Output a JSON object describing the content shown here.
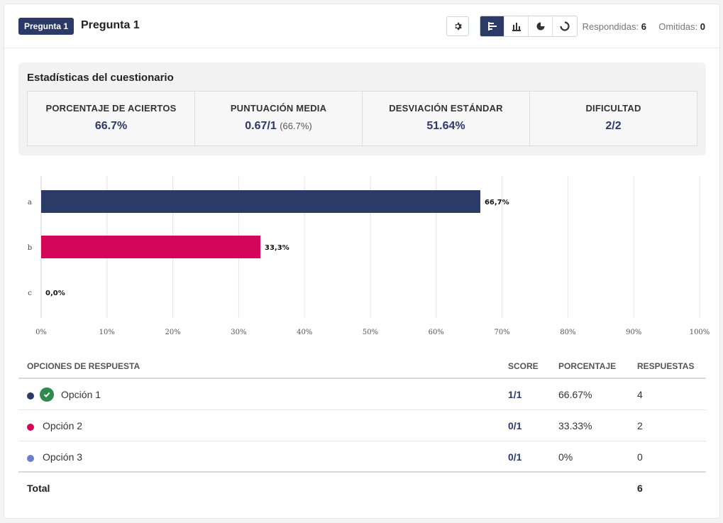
{
  "header": {
    "badge": "Pregunta 1",
    "title": "Pregunta 1",
    "answered_label": "Respondidas:",
    "answered_value": "6",
    "omitted_label": "Omitidas:",
    "omitted_value": "0",
    "active_view": "bar-horizontal"
  },
  "stats": {
    "title": "Estadísticas del cuestionario",
    "items": [
      {
        "label": "PORCENTAJE DE ACIERTOS",
        "value": "66.7%",
        "sub": ""
      },
      {
        "label": "PUNTUACIÓN MEDIA",
        "value": "0.67/1",
        "sub": "(66.7%)"
      },
      {
        "label": "DESVIACIÓN ESTÁNDAR",
        "value": "51.64%",
        "sub": ""
      },
      {
        "label": "DIFICULTAD",
        "value": "2/2",
        "sub": ""
      }
    ]
  },
  "chart_data": {
    "type": "bar",
    "orientation": "horizontal",
    "categories": [
      "a",
      "b",
      "c"
    ],
    "values": [
      66.7,
      33.3,
      0.0
    ],
    "value_labels": [
      "66,7%",
      "33,3%",
      "0,0%"
    ],
    "colors": [
      "#2b3a67",
      "#d4065a",
      "#6c7ec9"
    ],
    "xlim": [
      0,
      100
    ],
    "x_ticks": [
      "0%",
      "10%",
      "20%",
      "30%",
      "40%",
      "50%",
      "60%",
      "70%",
      "80%",
      "90%",
      "100%"
    ],
    "grid": true
  },
  "table": {
    "headers": {
      "option": "OPCIONES DE RESPUESTA",
      "score": "SCORE",
      "percent": "PORCENTAJE",
      "responses": "RESPUESTAS"
    },
    "rows": [
      {
        "label": "Opción 1",
        "score": "1/1",
        "percent": "66.67%",
        "responses": "4",
        "color": "#2b3a67",
        "correct": true
      },
      {
        "label": "Opción 2",
        "score": "0/1",
        "percent": "33.33%",
        "responses": "2",
        "color": "#d4065a",
        "correct": false
      },
      {
        "label": "Opción 3",
        "score": "0/1",
        "percent": "0%",
        "responses": "0",
        "color": "#6c7ec9",
        "correct": false
      }
    ],
    "total_label": "Total",
    "total_value": "6"
  }
}
